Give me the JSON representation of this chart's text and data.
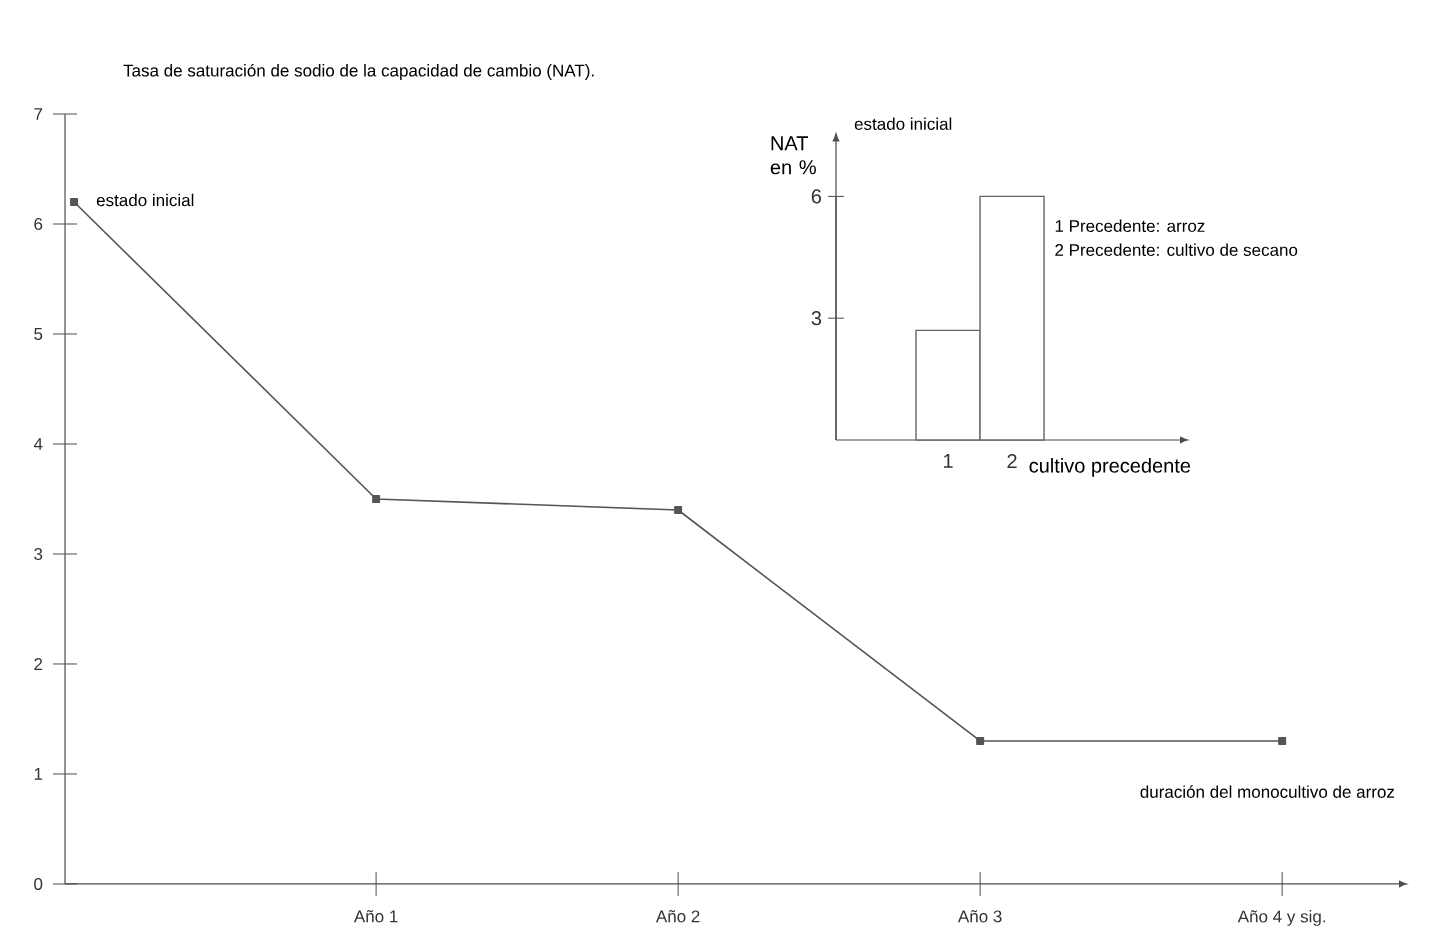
{
  "chart_data": [
    {
      "type": "line",
      "ylabel": "Tasa de saturación de sodio de la capacidad de cambio (NAT).",
      "xlabel": "duración del monocultivo de arroz",
      "categories": [
        null,
        "Año 1",
        "Año 2",
        "Año 3",
        "Año 4 y sig."
      ],
      "series": [
        {
          "color": "#555555",
          "values": [
            6.2,
            3.5,
            3.4,
            1.3,
            1.3
          ]
        }
      ],
      "ylim": [
        0,
        7
      ],
      "yticks": [
        0,
        1,
        2,
        3,
        4,
        5,
        6,
        7
      ],
      "marker": "square",
      "annotations": [
        "estado inicial"
      ]
    },
    {
      "type": "bar",
      "title": "estado inicial",
      "ylabel": "NAT en %",
      "xlabel": "cultivo precedente",
      "categories": [
        "1",
        "2"
      ],
      "series": [
        {
          "color": "#666666",
          "values": [
            2.7,
            6
          ]
        }
      ],
      "ylim": [
        0,
        6
      ],
      "yticks": [
        3,
        6
      ],
      "annotations": [
        "1 Precedente: arroz",
        "2 Precedente: cultivo de secano"
      ]
    }
  ]
}
